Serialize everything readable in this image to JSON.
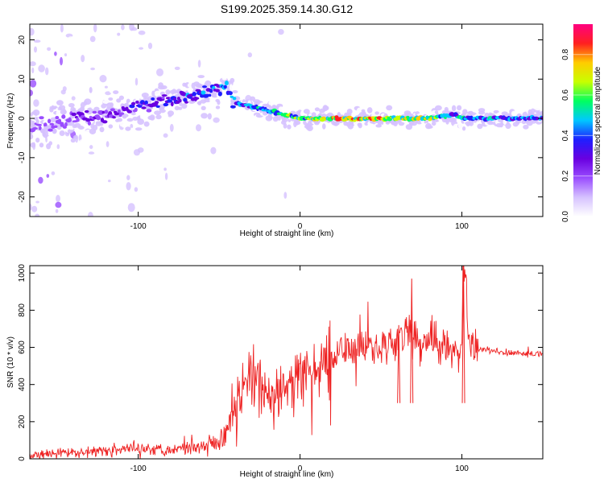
{
  "title": "S199.2025.359.14.30.G12",
  "chart_data": [
    {
      "type": "heatmap",
      "name": "spectrogram",
      "xlabel": "Height of straight line (km)",
      "ylabel": "Frequency (Hz)",
      "xlim": [
        -167,
        150
      ],
      "ylim": [
        -25,
        24
      ],
      "xticks": [
        -100,
        0,
        100
      ],
      "yticks": [
        -20,
        -10,
        0,
        10,
        20
      ],
      "colorbar": {
        "label": "Normalized spectral amplitude",
        "range": [
          0.0,
          0.95
        ],
        "ticks": [
          0.0,
          0.2,
          0.4,
          0.6,
          0.8
        ],
        "colors": [
          "#ffffff",
          "#d6c2ff",
          "#9a4dff",
          "#6a00e0",
          "#1f1fff",
          "#00c8ff",
          "#00ff60",
          "#c8ff00",
          "#ffcc00",
          "#ff2020",
          "#ff0080"
        ]
      },
      "ridge": {
        "description": "dominant frequency ridge",
        "x": [
          -155,
          -140,
          -120,
          -100,
          -80,
          -60,
          -50,
          -45,
          -40,
          -30,
          -20,
          -10,
          0,
          20,
          40,
          60,
          80,
          95,
          100,
          120,
          150
        ],
        "freq_hz": [
          -2,
          0,
          1,
          3,
          5,
          6,
          8,
          7,
          4,
          3,
          2,
          1,
          0,
          0,
          0,
          0,
          0,
          1,
          0,
          0,
          0
        ],
        "amplitude": [
          0.25,
          0.3,
          0.35,
          0.4,
          0.45,
          0.5,
          0.55,
          0.5,
          0.5,
          0.55,
          0.6,
          0.65,
          0.7,
          0.9,
          0.88,
          0.85,
          0.8,
          0.5,
          0.6,
          0.55,
          0.5
        ]
      }
    },
    {
      "type": "line",
      "name": "snr",
      "xlabel": "Height of straight line (km)",
      "ylabel": "SNR (10 * v/v)",
      "xlim": [
        -167,
        150
      ],
      "ylim": [
        0,
        1040
      ],
      "xticks": [
        -100,
        0,
        100
      ],
      "yticks": [
        0,
        200,
        400,
        600,
        800,
        1000
      ],
      "color": "#ee2222",
      "series": [
        {
          "name": "SNR",
          "x": [
            -167,
            -150,
            -130,
            -110,
            -100,
            -90,
            -80,
            -70,
            -60,
            -50,
            -45,
            -40,
            -35,
            -30,
            -25,
            -20,
            -15,
            -10,
            -5,
            0,
            10,
            20,
            30,
            40,
            50,
            60,
            65,
            70,
            75,
            80,
            90,
            95,
            100,
            101,
            105,
            110,
            120,
            130,
            140,
            150
          ],
          "y": [
            20,
            30,
            40,
            50,
            60,
            55,
            50,
            60,
            75,
            100,
            180,
            300,
            380,
            420,
            400,
            350,
            320,
            380,
            400,
            430,
            480,
            560,
            620,
            600,
            610,
            620,
            700,
            650,
            600,
            650,
            600,
            560,
            620,
            1040,
            620,
            590,
            580,
            570,
            565,
            565
          ]
        }
      ],
      "peaks": [
        {
          "x": 61,
          "y": 720
        },
        {
          "x": 69,
          "y": 970
        },
        {
          "x": 101,
          "y": 1040
        }
      ]
    }
  ]
}
